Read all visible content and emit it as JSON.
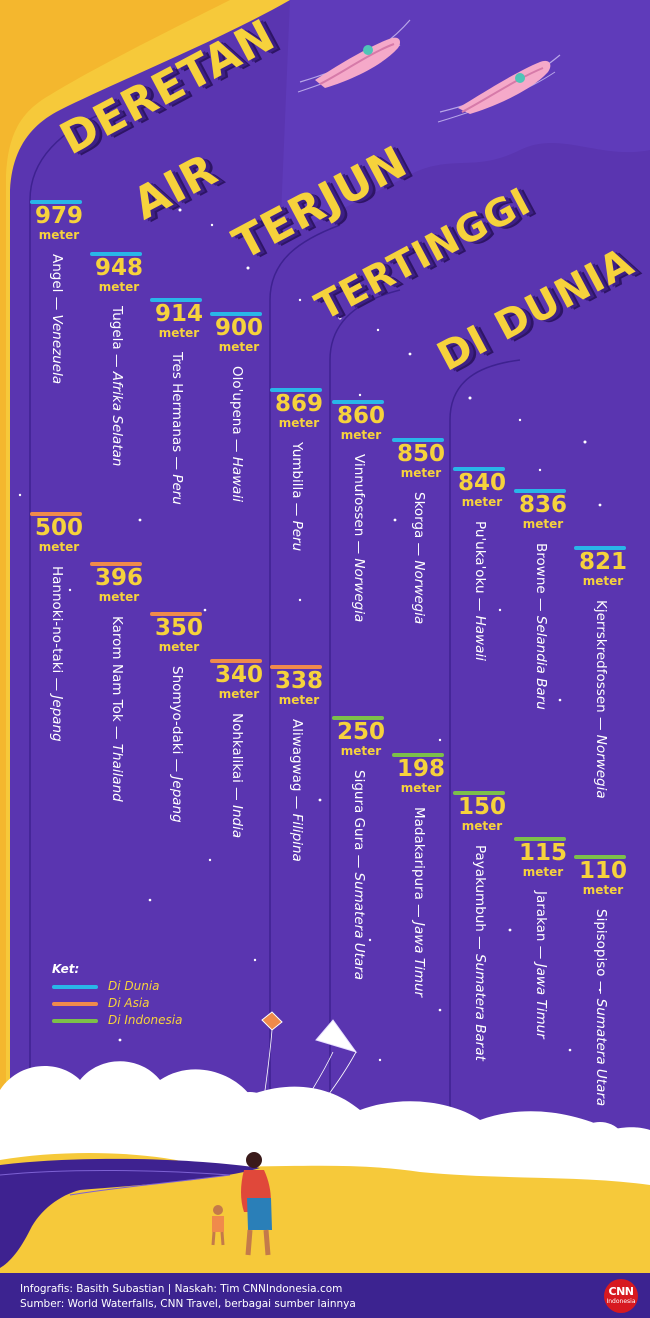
{
  "title": {
    "words": [
      "DERETAN",
      "AIR",
      "TERJUN",
      "TERTINGGI",
      "DI DUNIA"
    ]
  },
  "colors": {
    "background": "#5a35b0",
    "accent_yellow": "#f6d23c",
    "dunia": "#29b6e8",
    "asia": "#f08a4b",
    "indonesia": "#7cc04a"
  },
  "entries": [
    {
      "value": "979",
      "unit": "meter",
      "name": "Angel",
      "region": "Venezuela",
      "category": "dunia"
    },
    {
      "value": "948",
      "unit": "meter",
      "name": "Tugela",
      "region": "Afrika Selatan",
      "category": "dunia"
    },
    {
      "value": "914",
      "unit": "meter",
      "name": "Tres Hermanas",
      "region": "Peru",
      "category": "dunia"
    },
    {
      "value": "900",
      "unit": "meter",
      "name": "Olo'upena",
      "region": "Hawaii",
      "category": "dunia"
    },
    {
      "value": "869",
      "unit": "meter",
      "name": "Yumbilla",
      "region": "Peru",
      "category": "dunia"
    },
    {
      "value": "860",
      "unit": "meter",
      "name": "Vinnufossen",
      "region": "Norwegia",
      "category": "dunia"
    },
    {
      "value": "850",
      "unit": "meter",
      "name": "Skorga",
      "region": "Norwegia",
      "category": "dunia"
    },
    {
      "value": "840",
      "unit": "meter",
      "name": "Pu'uka'oku",
      "region": "Hawaii",
      "category": "dunia"
    },
    {
      "value": "836",
      "unit": "meter",
      "name": "Browne",
      "region": "Selandia Baru",
      "category": "dunia"
    },
    {
      "value": "821",
      "unit": "meter",
      "name": "Kjerrskredfossen",
      "region": "Norwegia",
      "category": "dunia"
    },
    {
      "value": "500",
      "unit": "meter",
      "name": "Hannoki-no-taki",
      "region": "Jepang",
      "category": "asia"
    },
    {
      "value": "396",
      "unit": "meter",
      "name": "Karom Nam Tok",
      "region": "Thailand",
      "category": "asia"
    },
    {
      "value": "350",
      "unit": "meter",
      "name": "Shomyo-daki",
      "region": "Jepang",
      "category": "asia"
    },
    {
      "value": "340",
      "unit": "meter",
      "name": "Nohkalikai",
      "region": "India",
      "category": "asia"
    },
    {
      "value": "338",
      "unit": "meter",
      "name": "Aliwagwag",
      "region": "Filipina",
      "category": "asia"
    },
    {
      "value": "250",
      "unit": "meter",
      "name": "Sigura Gura",
      "region": "Sumatera Utara",
      "category": "indonesia"
    },
    {
      "value": "198",
      "unit": "meter",
      "name": "Madakaripura",
      "region": "Jawa Timur",
      "category": "indonesia"
    },
    {
      "value": "150",
      "unit": "meter",
      "name": "Payakumbuh",
      "region": "Sumatera Barat",
      "category": "indonesia"
    },
    {
      "value": "115",
      "unit": "meter",
      "name": "Jarakan",
      "region": "Jawa Timur",
      "category": "indonesia"
    },
    {
      "value": "110",
      "unit": "meter",
      "name": "Sipisopiso",
      "region": "Sumatera Utara",
      "category": "indonesia"
    }
  ],
  "legend": {
    "title": "Ket:",
    "items": [
      {
        "label": "Di Dunia",
        "category": "dunia"
      },
      {
        "label": "Di Asia",
        "category": "asia"
      },
      {
        "label": "Di Indonesia",
        "category": "indonesia"
      }
    ]
  },
  "separator": " — ",
  "footer": {
    "credits": "Infografis: Basith Subastian | Naskah: Tim CNNIndonesia.com",
    "source": "Sumber: World Waterfalls, CNN Travel, berbagai sumber lainnya"
  },
  "logo": {
    "main": "CNN",
    "sub": "Indonesia"
  }
}
